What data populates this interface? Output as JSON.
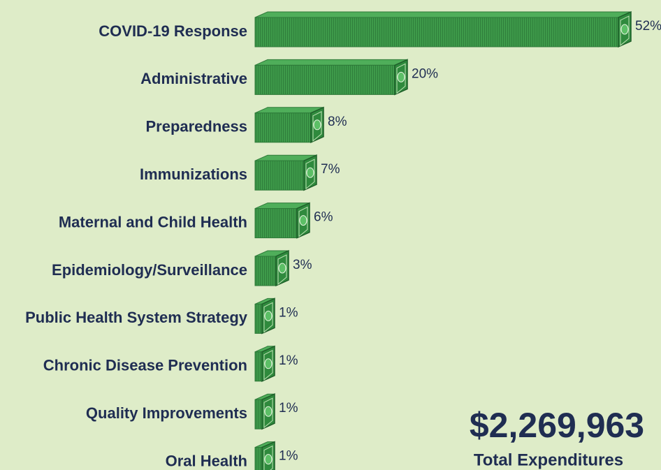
{
  "chart_data": {
    "type": "bar",
    "orientation": "horizontal",
    "categories": [
      "COVID-19 Response",
      "Administrative",
      "Preparedness",
      "Immunizations",
      "Maternal and Child Health",
      "Epidemiology/Surveillance",
      "Public Health System Strategy",
      "Chronic Disease Prevention",
      "Quality Improvements",
      "Oral Health"
    ],
    "values": [
      52,
      20,
      8,
      7,
      6,
      3,
      1,
      1,
      1,
      1
    ],
    "value_labels": [
      "52%",
      "20%",
      "8%",
      "7%",
      "6%",
      "3%",
      "1%",
      "1%",
      "1%",
      "1%"
    ],
    "color": "#3e9a4a",
    "total": "$2,269,963",
    "total_label": "Total Expenditures"
  }
}
